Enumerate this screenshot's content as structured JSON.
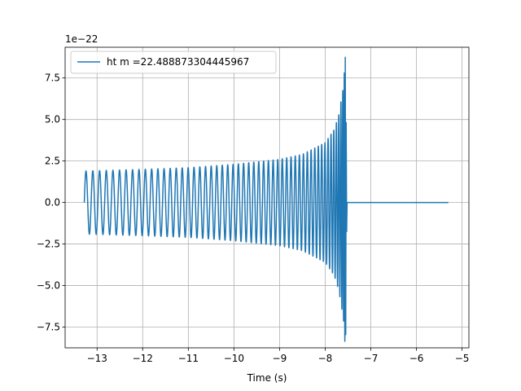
{
  "chart_data": {
    "type": "line",
    "title": "",
    "xlabel": "Time (s)",
    "ylabel": "",
    "y_offset_label": "1e−22",
    "xlim": [
      -13.7,
      -4.85
    ],
    "ylim": [
      -8.75e-22,
      9.35e-22
    ],
    "x_ticks": [
      -13,
      -12,
      -11,
      -10,
      -9,
      -8,
      -7,
      -6,
      -5
    ],
    "x_tick_labels": [
      "−13",
      "−12",
      "−11",
      "−10",
      "−9",
      "−8",
      "−7",
      "−6",
      "−5"
    ],
    "y_ticks": [
      -7.5e-22,
      -5e-22,
      -2.5e-22,
      0,
      2.5e-22,
      5e-22,
      7.5e-22
    ],
    "y_tick_labels": [
      "−7.5",
      "−5.0",
      "−2.5",
      "0.0",
      "2.5",
      "5.0",
      "7.5"
    ],
    "grid": true,
    "legend_position": "top-left",
    "series": [
      {
        "name": "ht m =22.488873304445967",
        "color": "#1f77b4",
        "signal": {
          "start_time": -13.28,
          "merger_time": -7.56,
          "end_time": -5.3,
          "initial_amplitude": 1.9e-22,
          "peak_max": 8.75e-22,
          "peak_min": -7.95e-22,
          "initial_frequency_hz": 9.5
        },
        "envelope": [
          {
            "t": -13.28,
            "amp": 1.9e-22
          },
          {
            "t": -12.0,
            "amp": 2e-22
          },
          {
            "t": -11.0,
            "amp": 2.1e-22
          },
          {
            "t": -10.0,
            "amp": 2.3e-22
          },
          {
            "t": -9.0,
            "amp": 2.6e-22
          },
          {
            "t": -8.5,
            "amp": 2.9e-22
          },
          {
            "t": -8.0,
            "amp": 3.6e-22
          },
          {
            "t": -7.8,
            "amp": 4.4e-22
          },
          {
            "t": -7.7,
            "amp": 5.3e-22
          },
          {
            "t": -7.6,
            "amp": 7e-22
          },
          {
            "t": -7.56,
            "amp": 8.75e-22
          },
          {
            "t": -7.52,
            "amp": 0
          },
          {
            "t": -5.3,
            "amp": 0
          }
        ]
      }
    ]
  }
}
